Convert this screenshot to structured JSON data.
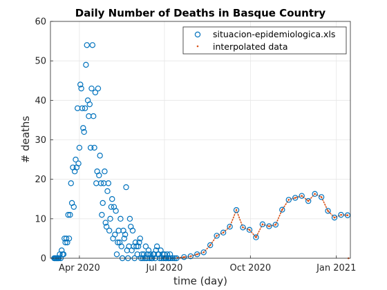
{
  "chart_data": {
    "type": "scatter",
    "title": "Daily Number of Deaths in Basque Country",
    "xlabel": "time (day)",
    "ylabel": "# deaths",
    "xlim": [
      "2020-03-01",
      "2021-01-16"
    ],
    "ylim": [
      0,
      60
    ],
    "x_ticks": [
      {
        "date": "2020-04-01",
        "label": "Apr 2020"
      },
      {
        "date": "2020-07-01",
        "label": "Jul 2020"
      },
      {
        "date": "2020-10-01",
        "label": "Oct 2020"
      },
      {
        "date": "2021-01-01",
        "label": "Jan 2021"
      }
    ],
    "y_ticks": [
      0,
      10,
      20,
      30,
      40,
      50,
      60
    ],
    "grid": true,
    "legend_position": "top-right",
    "colors": {
      "observed": "#0072BD",
      "interpolated": "#D95319",
      "axis": "#262626",
      "grid": "#e6e6e6"
    },
    "series": [
      {
        "name": "situacion-epidemiologica.xls",
        "marker": "circle",
        "points": [
          [
            "2020-03-05",
            0
          ],
          [
            "2020-03-06",
            0
          ],
          [
            "2020-03-07",
            0
          ],
          [
            "2020-03-08",
            0
          ],
          [
            "2020-03-09",
            0
          ],
          [
            "2020-03-10",
            0
          ],
          [
            "2020-03-11",
            1
          ],
          [
            "2020-03-12",
            0
          ],
          [
            "2020-03-13",
            2
          ],
          [
            "2020-03-14",
            1
          ],
          [
            "2020-03-15",
            1
          ],
          [
            "2020-03-16",
            5
          ],
          [
            "2020-03-17",
            4
          ],
          [
            "2020-03-18",
            5
          ],
          [
            "2020-03-19",
            4
          ],
          [
            "2020-03-20",
            11
          ],
          [
            "2020-03-21",
            5
          ],
          [
            "2020-03-22",
            11
          ],
          [
            "2020-03-23",
            19
          ],
          [
            "2020-03-24",
            14
          ],
          [
            "2020-03-25",
            23
          ],
          [
            "2020-03-26",
            13
          ],
          [
            "2020-03-27",
            22
          ],
          [
            "2020-03-28",
            25
          ],
          [
            "2020-03-29",
            23
          ],
          [
            "2020-03-30",
            38
          ],
          [
            "2020-03-31",
            24
          ],
          [
            "2020-04-01",
            28
          ],
          [
            "2020-04-02",
            44
          ],
          [
            "2020-04-03",
            43
          ],
          [
            "2020-04-04",
            38
          ],
          [
            "2020-04-05",
            33
          ],
          [
            "2020-04-06",
            32
          ],
          [
            "2020-04-07",
            38
          ],
          [
            "2020-04-08",
            49
          ],
          [
            "2020-04-09",
            54
          ],
          [
            "2020-04-10",
            40
          ],
          [
            "2020-04-11",
            36
          ],
          [
            "2020-04-12",
            39
          ],
          [
            "2020-04-13",
            28
          ],
          [
            "2020-04-14",
            43
          ],
          [
            "2020-04-15",
            54
          ],
          [
            "2020-04-16",
            36
          ],
          [
            "2020-04-17",
            28
          ],
          [
            "2020-04-18",
            42
          ],
          [
            "2020-04-19",
            19
          ],
          [
            "2020-04-20",
            22
          ],
          [
            "2020-04-21",
            43
          ],
          [
            "2020-04-22",
            21
          ],
          [
            "2020-04-23",
            26
          ],
          [
            "2020-04-24",
            19
          ],
          [
            "2020-04-25",
            11
          ],
          [
            "2020-04-26",
            14
          ],
          [
            "2020-04-27",
            19
          ],
          [
            "2020-04-28",
            22
          ],
          [
            "2020-04-29",
            9
          ],
          [
            "2020-04-30",
            8
          ],
          [
            "2020-05-01",
            17
          ],
          [
            "2020-05-02",
            19
          ],
          [
            "2020-05-03",
            7
          ],
          [
            "2020-05-04",
            10
          ],
          [
            "2020-05-05",
            13
          ],
          [
            "2020-05-06",
            15
          ],
          [
            "2020-05-07",
            5
          ],
          [
            "2020-05-08",
            13
          ],
          [
            "2020-05-09",
            6
          ],
          [
            "2020-05-10",
            12
          ],
          [
            "2020-05-11",
            1
          ],
          [
            "2020-05-12",
            4
          ],
          [
            "2020-05-13",
            7
          ],
          [
            "2020-05-14",
            4
          ],
          [
            "2020-05-15",
            10
          ],
          [
            "2020-05-16",
            3
          ],
          [
            "2020-05-17",
            0
          ],
          [
            "2020-05-18",
            7
          ],
          [
            "2020-05-19",
            5
          ],
          [
            "2020-05-20",
            6
          ],
          [
            "2020-05-21",
            18
          ],
          [
            "2020-05-22",
            2
          ],
          [
            "2020-05-23",
            0
          ],
          [
            "2020-05-24",
            3
          ],
          [
            "2020-05-25",
            10
          ],
          [
            "2020-05-26",
            8
          ],
          [
            "2020-05-27",
            2
          ],
          [
            "2020-05-28",
            7
          ],
          [
            "2020-05-29",
            3
          ],
          [
            "2020-05-30",
            0
          ],
          [
            "2020-05-31",
            4
          ],
          [
            "2020-06-01",
            3
          ],
          [
            "2020-06-02",
            1
          ],
          [
            "2020-06-03",
            3
          ],
          [
            "2020-06-04",
            4
          ],
          [
            "2020-06-05",
            5
          ],
          [
            "2020-06-06",
            0
          ],
          [
            "2020-06-07",
            1
          ],
          [
            "2020-06-08",
            0
          ],
          [
            "2020-06-09",
            1
          ],
          [
            "2020-06-10",
            0
          ],
          [
            "2020-06-11",
            3
          ],
          [
            "2020-06-12",
            0
          ],
          [
            "2020-06-13",
            1
          ],
          [
            "2020-06-14",
            2
          ],
          [
            "2020-06-15",
            0
          ],
          [
            "2020-06-16",
            1
          ],
          [
            "2020-06-17",
            0
          ],
          [
            "2020-06-18",
            0
          ],
          [
            "2020-06-19",
            1
          ],
          [
            "2020-06-20",
            1
          ],
          [
            "2020-06-21",
            0
          ],
          [
            "2020-06-22",
            2
          ],
          [
            "2020-06-23",
            3
          ],
          [
            "2020-06-24",
            1
          ],
          [
            "2020-06-25",
            1
          ],
          [
            "2020-06-26",
            0
          ],
          [
            "2020-06-27",
            2
          ],
          [
            "2020-06-28",
            0
          ],
          [
            "2020-06-29",
            1
          ],
          [
            "2020-06-30",
            0
          ],
          [
            "2020-07-01",
            1
          ],
          [
            "2020-07-02",
            0
          ],
          [
            "2020-07-03",
            0
          ],
          [
            "2020-07-04",
            1
          ],
          [
            "2020-07-05",
            0
          ],
          [
            "2020-07-06",
            0
          ],
          [
            "2020-07-07",
            1
          ],
          [
            "2020-07-08",
            0
          ],
          [
            "2020-07-10",
            0
          ],
          [
            "2020-07-12",
            0
          ],
          [
            "2020-07-14",
            0
          ],
          [
            "2020-07-22",
            0.3
          ],
          [
            "2020-07-29",
            0.5
          ],
          [
            "2020-08-05",
            1
          ],
          [
            "2020-08-12",
            1.5
          ],
          [
            "2020-08-19",
            3.3
          ],
          [
            "2020-08-26",
            5.7
          ],
          [
            "2020-09-02",
            6.5
          ],
          [
            "2020-09-09",
            8
          ],
          [
            "2020-09-16",
            12.2
          ],
          [
            "2020-09-23",
            7.8
          ],
          [
            "2020-09-30",
            7.2
          ],
          [
            "2020-10-07",
            5.3
          ],
          [
            "2020-10-14",
            8.6
          ],
          [
            "2020-10-21",
            8.1
          ],
          [
            "2020-10-28",
            8.5
          ],
          [
            "2020-11-04",
            12.3
          ],
          [
            "2020-11-11",
            14.8
          ],
          [
            "2020-11-18",
            15.3
          ],
          [
            "2020-11-25",
            15.8
          ],
          [
            "2020-12-02",
            14.5
          ],
          [
            "2020-12-09",
            16.3
          ],
          [
            "2020-12-16",
            15.5
          ],
          [
            "2020-12-23",
            12
          ],
          [
            "2020-12-30",
            10.3
          ],
          [
            "2021-01-06",
            11
          ],
          [
            "2021-01-13",
            10.9
          ]
        ]
      },
      {
        "name": "interpolated data",
        "marker": "dot",
        "points": [
          [
            "2020-07-15",
            0.1
          ],
          [
            "2020-07-22",
            0.3
          ],
          [
            "2020-07-29",
            0.5
          ],
          [
            "2020-08-05",
            1
          ],
          [
            "2020-08-12",
            1.5
          ],
          [
            "2020-08-19",
            3.3
          ],
          [
            "2020-08-26",
            5.7
          ],
          [
            "2020-09-02",
            6.5
          ],
          [
            "2020-09-09",
            8
          ],
          [
            "2020-09-16",
            12.2
          ],
          [
            "2020-09-23",
            7.8
          ],
          [
            "2020-09-30",
            7.2
          ],
          [
            "2020-10-07",
            5.3
          ],
          [
            "2020-10-14",
            8.6
          ],
          [
            "2020-10-21",
            8.1
          ],
          [
            "2020-10-28",
            8.5
          ],
          [
            "2020-11-04",
            12.3
          ],
          [
            "2020-11-11",
            14.8
          ],
          [
            "2020-11-18",
            15.3
          ],
          [
            "2020-11-25",
            15.8
          ],
          [
            "2020-12-02",
            14.5
          ],
          [
            "2020-12-09",
            16.3
          ],
          [
            "2020-12-16",
            15.5
          ],
          [
            "2020-12-23",
            12
          ],
          [
            "2020-12-30",
            10.3
          ],
          [
            "2021-01-06",
            11
          ],
          [
            "2021-01-13",
            10.9
          ],
          [
            "2021-01-14",
            0
          ]
        ]
      }
    ]
  }
}
